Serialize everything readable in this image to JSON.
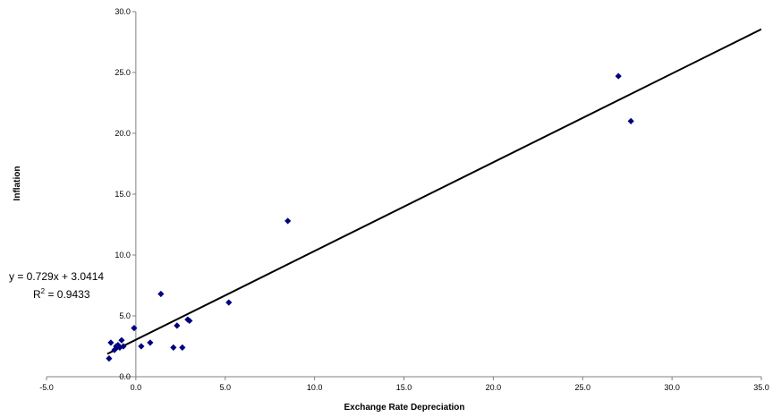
{
  "chart_data": {
    "type": "scatter",
    "xlabel": "Exchange Rate Depreciation",
    "ylabel": "Inflation",
    "xlim": [
      -5,
      35
    ],
    "ylim": [
      0,
      30
    ],
    "x_ticks": [
      "-5.0",
      "0.0",
      "5.0",
      "10.0",
      "15.0",
      "20.0",
      "25.0",
      "30.0",
      "35.0"
    ],
    "y_ticks": [
      "0.0",
      "5.0",
      "10.0",
      "15.0",
      "20.0",
      "25.0",
      "30.0"
    ],
    "grid": false,
    "marker_color": "#000080",
    "trendline": {
      "slope": 0.729,
      "intercept": 3.0414,
      "equation": "y = 0.729x + 3.0414",
      "r2_label": "R",
      "r2_sup": "2",
      "r2_value": " = 0.9433",
      "color": "#000000"
    },
    "points": [
      {
        "x": -1.5,
        "y": 1.5
      },
      {
        "x": -1.4,
        "y": 2.8
      },
      {
        "x": -1.2,
        "y": 2.2
      },
      {
        "x": -1.1,
        "y": 2.5
      },
      {
        "x": -1.0,
        "y": 2.6
      },
      {
        "x": -0.9,
        "y": 2.4
      },
      {
        "x": -0.8,
        "y": 3.0
      },
      {
        "x": -0.7,
        "y": 2.5
      },
      {
        "x": -0.1,
        "y": 4.0
      },
      {
        "x": 0.3,
        "y": 2.5
      },
      {
        "x": 0.8,
        "y": 2.8
      },
      {
        "x": 1.4,
        "y": 6.8
      },
      {
        "x": 2.1,
        "y": 2.4
      },
      {
        "x": 2.3,
        "y": 4.2
      },
      {
        "x": 2.6,
        "y": 2.4
      },
      {
        "x": 2.9,
        "y": 4.7
      },
      {
        "x": 3.0,
        "y": 4.6
      },
      {
        "x": 5.2,
        "y": 6.1
      },
      {
        "x": 8.5,
        "y": 12.8
      },
      {
        "x": 27.0,
        "y": 24.7
      },
      {
        "x": 27.7,
        "y": 21.0
      }
    ]
  }
}
